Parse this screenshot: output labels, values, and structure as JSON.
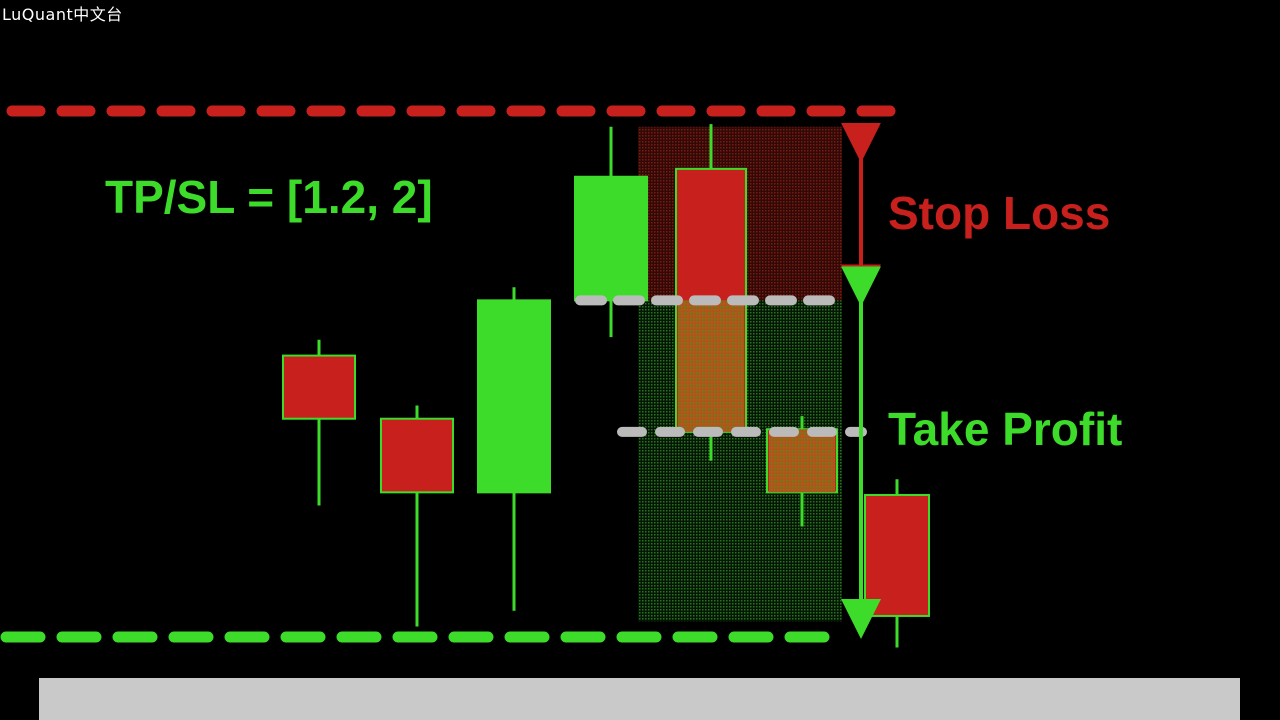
{
  "watermark": "LuQuant中文台",
  "labels": {
    "ratio": "TP/SL = [1.2, 2]",
    "stop_loss": "Stop Loss",
    "take_profit": "Take Profit"
  },
  "colors": {
    "background": "#000000",
    "bull": "#3ddc2b",
    "bear": "#c8201c",
    "sl_zone": "#7a1a12",
    "tp_zone": "#1f6b1a",
    "hold_candle": "#c85a1a",
    "entry_line": "#bbbbbb",
    "bottom_bar": "#c9c9c9"
  },
  "chart_data": {
    "type": "candlestick",
    "title": "",
    "xlabel": "",
    "ylabel": "",
    "ylim": [
      0,
      100
    ],
    "candles": [
      {
        "open": 53.5,
        "close": 41.5,
        "high": 56.5,
        "low": 25.0,
        "direction": "bear"
      },
      {
        "open": 41.5,
        "close": 27.5,
        "high": 44.0,
        "low": 2.0,
        "direction": "bear"
      },
      {
        "open": 27.5,
        "close": 64.0,
        "high": 66.5,
        "low": 5.0,
        "direction": "bull"
      },
      {
        "open": 64.0,
        "close": 87.5,
        "high": 97.0,
        "low": 57.0,
        "direction": "bull"
      },
      {
        "open": 89.0,
        "close": 39.0,
        "high": 97.5,
        "low": 33.5,
        "direction": "bear",
        "in_trade": true
      },
      {
        "open": 39.5,
        "close": 27.5,
        "high": 42.0,
        "low": 21.0,
        "direction": "bear",
        "in_trade": true
      },
      {
        "open": 27.0,
        "close": 4.0,
        "high": 30.0,
        "low": -2.0,
        "direction": "bear"
      }
    ],
    "levels": {
      "upper_bound": 100,
      "entry": 64,
      "take_profit_mark": 39,
      "lower_bound": 0
    },
    "zones": [
      {
        "name": "Stop Loss",
        "from": 64,
        "to": 97
      },
      {
        "name": "Take Profit",
        "from": 0,
        "to": 64
      }
    ],
    "grid": false,
    "legend": "none"
  }
}
